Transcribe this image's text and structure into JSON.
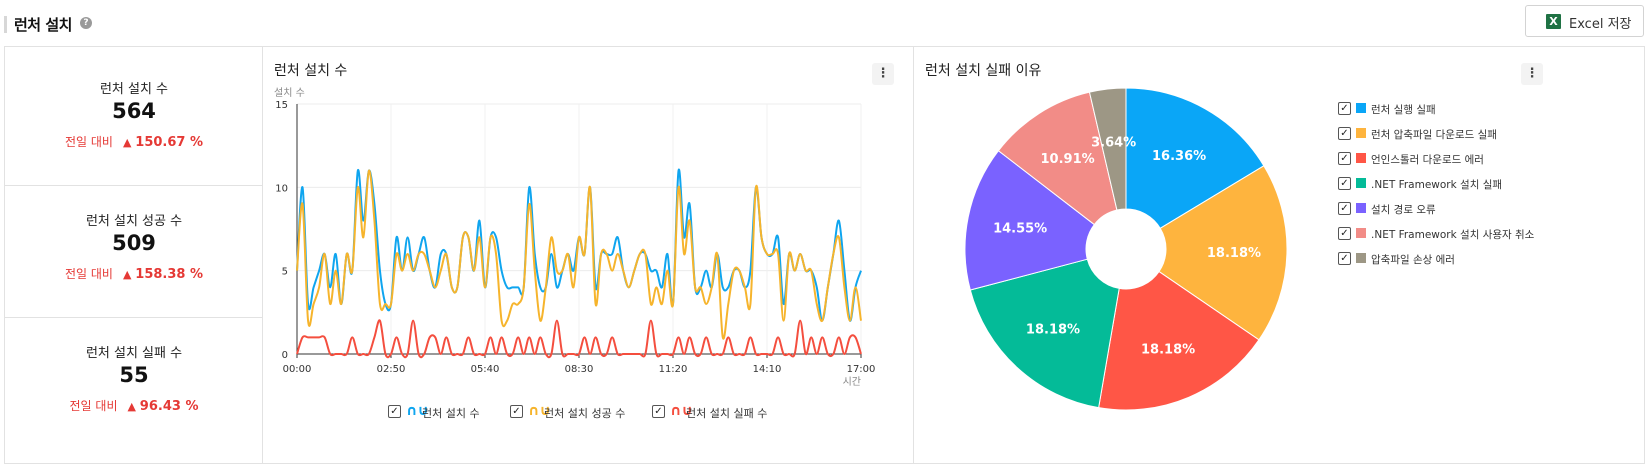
{
  "header": {
    "title": "런처 설치",
    "help": "?",
    "excel_icon": "X",
    "excel_label": "Excel 저장"
  },
  "kpis": [
    {
      "label": "런처 설치 수",
      "value": "564",
      "compare": "전일 대비",
      "arrow": "▲",
      "delta": "150.67 %"
    },
    {
      "label": "런처 설치 성공 수",
      "value": "509",
      "compare": "전일 대비",
      "arrow": "▲",
      "delta": "158.38 %"
    },
    {
      "label": "런처 설치 실패 수",
      "value": "55",
      "compare": "전일 대비",
      "arrow": "▲",
      "delta": "96.43 %"
    }
  ],
  "colors": {
    "total": "#0fa5ef",
    "success": "#f6b42c",
    "fail": "#f44e3e",
    "delta": "#e53935"
  },
  "chart_data": [
    {
      "type": "line",
      "title": "런처 설치 수",
      "ylabel": "설치 수",
      "xlabel": "시간",
      "ylim": [
        0,
        15
      ],
      "yticks": [
        "0",
        "5",
        "10",
        "15"
      ],
      "xticks": [
        "00:00",
        "02:50",
        "05:40",
        "08:30",
        "11:20",
        "14:10",
        "17:00"
      ],
      "x_range_minutes": [
        0,
        1020
      ],
      "interval_minutes": 10,
      "legend": [
        {
          "name": "런처 설치 수",
          "glyph": "∩∪",
          "color": "#0fa5ef",
          "checked": "✓"
        },
        {
          "name": "런처 설치 성공 수",
          "glyph": "∩∪",
          "color": "#f6b42c",
          "checked": "✓"
        },
        {
          "name": "런처 설치 실패 수",
          "glyph": "∩∪",
          "color": "#f44e3e",
          "checked": "✓"
        }
      ],
      "series": [
        {
          "name": "런처 설치 수",
          "color": "#0fa5ef",
          "values": [
            5,
            10,
            3,
            4,
            5,
            6,
            4,
            6,
            3,
            6,
            5,
            11,
            8,
            11,
            9,
            5,
            3,
            3,
            7,
            5,
            7,
            5,
            6,
            7,
            5,
            4,
            6,
            6,
            4,
            4,
            7,
            7,
            5,
            8,
            4,
            7,
            7,
            5,
            4,
            4,
            4,
            4,
            10,
            6,
            4,
            4,
            6,
            4,
            5,
            6,
            5,
            7,
            6,
            10,
            4,
            6,
            6,
            6,
            7,
            5,
            4,
            5,
            6,
            6,
            5,
            5,
            4,
            6,
            3,
            11,
            7,
            9,
            4,
            4,
            5,
            4,
            6,
            4,
            4,
            5,
            5,
            4,
            5,
            10,
            7,
            6,
            6,
            7,
            3,
            6,
            5,
            6,
            5,
            5,
            4,
            2,
            4,
            6,
            8,
            5,
            2,
            4,
            5
          ]
        },
        {
          "name": "런처 설치 성공 수",
          "color": "#f6b42c",
          "values": [
            5,
            9,
            2,
            3,
            4,
            6,
            3,
            5,
            3,
            6,
            5,
            10,
            7,
            11,
            8,
            3,
            3,
            3,
            6,
            5,
            6,
            5,
            6,
            6,
            5,
            4,
            5,
            6,
            4,
            4,
            7,
            7,
            5,
            7,
            4,
            7,
            6,
            2,
            2,
            3,
            3,
            4,
            9,
            5,
            2,
            4,
            7,
            5,
            5,
            6,
            4,
            7,
            6,
            10,
            3,
            6,
            6,
            5,
            6,
            5,
            4,
            5,
            6,
            6,
            3,
            4,
            3,
            5,
            3,
            10,
            6,
            8,
            4,
            4,
            3,
            4,
            6,
            1,
            3,
            5,
            5,
            4,
            3,
            10,
            7,
            6,
            6,
            6,
            2,
            6,
            5,
            6,
            5,
            5,
            3,
            2,
            4,
            6,
            7,
            4,
            2,
            4,
            2
          ]
        },
        {
          "name": "런처 설치 실패 수",
          "color": "#f44e3e",
          "values": [
            0,
            1,
            1,
            1,
            1,
            1,
            0,
            0,
            0,
            0,
            1,
            0,
            0,
            0,
            1,
            2,
            0,
            0,
            1,
            0,
            0,
            2,
            0,
            0,
            1,
            1,
            0,
            1,
            0,
            0,
            0,
            1,
            0,
            0,
            0,
            1,
            0,
            1,
            0,
            0,
            1,
            0,
            1,
            0,
            1,
            0,
            0,
            2,
            0,
            0,
            0,
            0,
            1,
            0,
            1,
            0,
            0,
            1,
            0,
            0,
            0,
            0,
            0,
            0,
            2,
            0,
            0,
            0,
            0,
            1,
            0,
            1,
            0,
            0,
            1,
            0,
            0,
            0,
            1,
            0,
            0,
            0,
            1,
            0,
            0,
            0,
            0,
            1,
            0,
            0,
            0,
            2,
            0,
            1,
            0,
            1,
            0,
            0,
            1,
            0,
            1,
            1,
            0
          ]
        }
      ]
    },
    {
      "type": "pie",
      "title": "런처 설치 실패 이유",
      "legend_position": "right",
      "slices": [
        {
          "label": "런처 실행 실패",
          "value": 16.36,
          "text": "16.36%",
          "color": "#0aa6f7",
          "checked": "✓"
        },
        {
          "label": "런처 압축파일 다운로드 실패",
          "value": 18.18,
          "text": "18.18%",
          "color": "#feb43e",
          "checked": "✓"
        },
        {
          "label": "언인스톨러 다운로드 에러",
          "value": 18.18,
          "text": "18.18%",
          "color": "#ff5646",
          "checked": "✓"
        },
        {
          "label": ".NET Framework 설치 실패",
          "value": 18.18,
          "text": "18.18%",
          "color": "#04bb98",
          "checked": "✓"
        },
        {
          "label": "설치 경로 오류",
          "value": 14.55,
          "text": "14.55%",
          "color": "#7a62ff",
          "checked": "✓"
        },
        {
          "label": ".NET Framework 설치 사용자 취소",
          "value": 10.91,
          "text": "10.91%",
          "color": "#f28c87",
          "checked": "✓"
        },
        {
          "label": "압축파일 손상 에러",
          "value": 3.64,
          "text": "3.64%",
          "color": "#9d9785",
          "checked": "✓"
        }
      ]
    }
  ],
  "panel_menu_glyph": "⋮"
}
